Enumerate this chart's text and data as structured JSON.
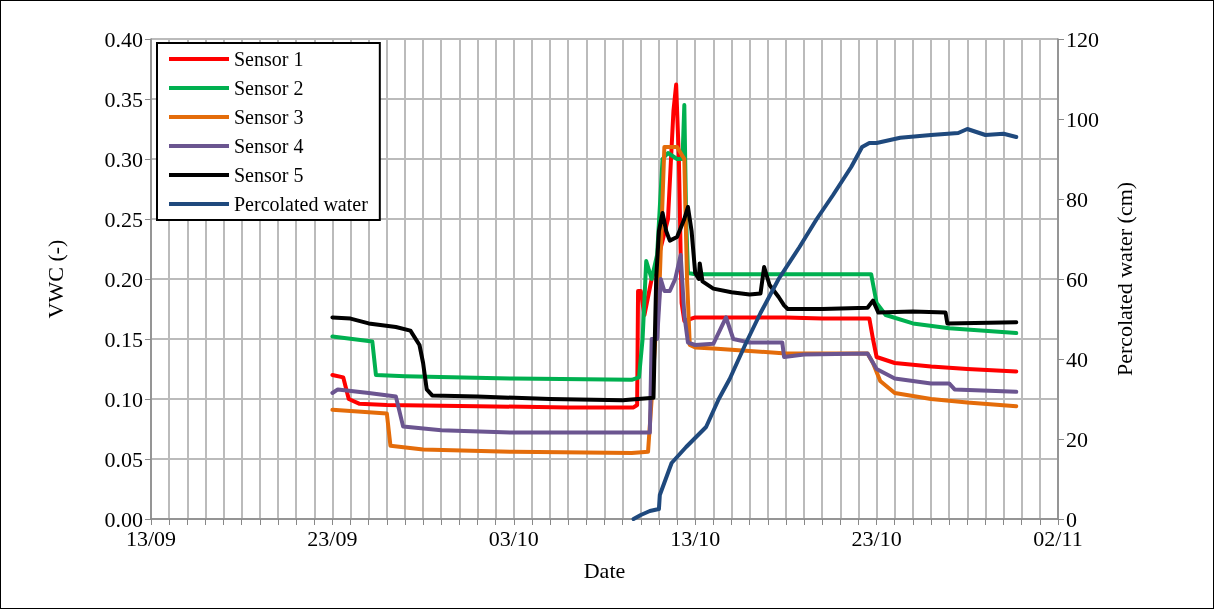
{
  "chart_data": {
    "type": "line",
    "xlabel": "Date",
    "ylabel": "VWC (-)",
    "y2label": "Percolated water (cm)",
    "xlim": [
      "--09-13",
      "--11-02"
    ],
    "xticks": [
      {
        "value": "--09-13",
        "label": "13/09"
      },
      {
        "value": "--09-14",
        "label": null
      },
      {
        "value": "--09-15",
        "label": null
      },
      {
        "value": "--09-16",
        "label": null
      },
      {
        "value": "--09-17",
        "label": null
      },
      {
        "value": "--09-18",
        "label": null
      },
      {
        "value": "--09-19",
        "label": null
      },
      {
        "value": "--09-20",
        "label": null
      },
      {
        "value": "--09-21",
        "label": null
      },
      {
        "value": "--09-22",
        "label": null
      },
      {
        "value": "--09-23",
        "label": "23/09"
      },
      {
        "value": "--09-24",
        "label": null
      },
      {
        "value": "--09-25",
        "label": null
      },
      {
        "value": "--09-26",
        "label": null
      },
      {
        "value": "--09-27",
        "label": null
      },
      {
        "value": "--09-28",
        "label": null
      },
      {
        "value": "--09-29",
        "label": null
      },
      {
        "value": "--09-30",
        "label": null
      },
      {
        "value": "--10-01",
        "label": null
      },
      {
        "value": "--10-02",
        "label": null
      },
      {
        "value": "--10-03",
        "label": "03/10"
      },
      {
        "value": "--10-04",
        "label": null
      },
      {
        "value": "--10-05",
        "label": null
      },
      {
        "value": "--10-06",
        "label": null
      },
      {
        "value": "--10-07",
        "label": null
      },
      {
        "value": "--10-08",
        "label": null
      },
      {
        "value": "--10-09",
        "label": null
      },
      {
        "value": "--10-10",
        "label": null
      },
      {
        "value": "--10-11",
        "label": null
      },
      {
        "value": "--10-12",
        "label": null
      },
      {
        "value": "--10-13",
        "label": "13/10"
      },
      {
        "value": "--10-14",
        "label": null
      },
      {
        "value": "--10-15",
        "label": null
      },
      {
        "value": "--10-16",
        "label": null
      },
      {
        "value": "--10-17",
        "label": null
      },
      {
        "value": "--10-18",
        "label": null
      },
      {
        "value": "--10-19",
        "label": null
      },
      {
        "value": "--10-20",
        "label": null
      },
      {
        "value": "--10-21",
        "label": null
      },
      {
        "value": "--10-22",
        "label": null
      },
      {
        "value": "--10-23",
        "label": "23/10"
      },
      {
        "value": "--10-24",
        "label": null
      },
      {
        "value": "--10-25",
        "label": null
      },
      {
        "value": "--10-26",
        "label": null
      },
      {
        "value": "--10-27",
        "label": null
      },
      {
        "value": "--10-28",
        "label": null
      },
      {
        "value": "--10-29",
        "label": null
      },
      {
        "value": "--10-30",
        "label": null
      },
      {
        "value": "--10-31",
        "label": null
      },
      {
        "value": "--11-01",
        "label": null
      },
      {
        "value": "--11-02",
        "label": "02/11"
      }
    ],
    "ylim": [
      0,
      0.4
    ],
    "yticks": [
      {
        "value": 0,
        "label": "0.00"
      },
      {
        "value": 0.05,
        "label": "0.05"
      },
      {
        "value": 0.1,
        "label": "0.10"
      },
      {
        "value": 0.15,
        "label": "0.15"
      },
      {
        "value": 0.2,
        "label": "0.20"
      },
      {
        "value": 0.25,
        "label": "0.25"
      },
      {
        "value": 0.3,
        "label": "0.30"
      },
      {
        "value": 0.35,
        "label": "0.35"
      },
      {
        "value": 0.4,
        "label": "0.40"
      }
    ],
    "y2lim": [
      0,
      120
    ],
    "y2ticks": [
      0,
      20,
      40,
      60,
      80,
      100,
      120
    ],
    "grid": true,
    "legend": "top left",
    "marker": "none",
    "line_style": "solid",
    "series": [
      {
        "name": "Sensor 1",
        "color": "#ff0000",
        "x": [
          "--09-23T00:00",
          "--09-23T14:24",
          "--09-23T21:36",
          "--09-24T12:00",
          "--09-26T00:00",
          "--10-01T00:00",
          "--10-06T00:00",
          "--10-09T14:24",
          "--10-09T19:12",
          "--10-09T20:24",
          "--10-10T00:00",
          "--10-10T04:48",
          "--10-10T14:24",
          "--10-11T00:00",
          "--10-11T12:00",
          "--10-11T19:12",
          "--10-11T22:48",
          "--10-12T02:24",
          "--10-12T06:00",
          "--10-12T09:36",
          "--10-13T00:00",
          "--10-15T00:00",
          "--10-18T00:00",
          "--10-20T00:00",
          "--10-22T14:24",
          "--10-22T19:12",
          "--10-23T00:00",
          "--10-24T00:00",
          "--10-26T00:00",
          "--10-28T00:00",
          "--10-30T16:48"
        ],
        "values": [
          0.12,
          0.118,
          0.1,
          0.096,
          0.095,
          0.094,
          0.093,
          0.093,
          0.095,
          0.19,
          0.19,
          0.17,
          0.2,
          0.22,
          0.25,
          0.34,
          0.362,
          0.3,
          0.18,
          0.165,
          0.168,
          0.168,
          0.168,
          0.167,
          0.167,
          0.15,
          0.135,
          0.13,
          0.127,
          0.125,
          0.123
        ]
      },
      {
        "name": "Sensor 2",
        "color": "#00b050",
        "x": [
          "--09-23T00:00",
          "--09-25T04:48",
          "--09-25T09:36",
          "--09-27T00:00",
          "--10-03T00:00",
          "--10-09T12:00",
          "--10-09T21:36",
          "--10-10T02:24",
          "--10-10T07:12",
          "--10-10T14:24",
          "--10-10T21:36",
          "--10-11T04:48",
          "--10-11T12:00",
          "--10-12T00:00",
          "--10-12T07:12",
          "--10-12T09:36",
          "--10-12T12:00",
          "--10-12T14:24",
          "--10-13T00:00",
          "--10-18T00:00",
          "--10-22T16:48",
          "--10-23T00:00",
          "--10-23T12:00",
          "--10-25T00:00",
          "--10-27T00:00",
          "--10-30T16:48"
        ],
        "values": [
          0.152,
          0.148,
          0.12,
          0.119,
          0.117,
          0.116,
          0.118,
          0.15,
          0.215,
          0.2,
          0.22,
          0.3,
          0.305,
          0.3,
          0.3,
          0.345,
          0.25,
          0.205,
          0.204,
          0.204,
          0.204,
          0.18,
          0.17,
          0.163,
          0.159,
          0.155
        ]
      },
      {
        "name": "Sensor 3",
        "color": "#e46c0a",
        "x": [
          "--09-23T00:00",
          "--09-26T00:00",
          "--09-26T04:48",
          "--09-28T00:00",
          "--10-03T00:00",
          "--10-09T12:00",
          "--10-10T09:36",
          "--10-10T14:24",
          "--10-10T19:12",
          "--10-11T00:00",
          "--10-11T07:12",
          "--10-11T14:24",
          "--10-12T00:00",
          "--10-12T09:36",
          "--10-12T13:12",
          "--10-12T16:48",
          "--10-13T00:00",
          "--10-14T00:00",
          "--10-16T00:00",
          "--10-18T00:00",
          "--10-20T00:00",
          "--10-22T12:00",
          "--10-22T19:12",
          "--10-23T04:48",
          "--10-24T00:00",
          "--10-26T00:00",
          "--10-28T00:00",
          "--10-30T16:48"
        ],
        "values": [
          0.091,
          0.088,
          0.061,
          0.058,
          0.056,
          0.055,
          0.056,
          0.1,
          0.15,
          0.18,
          0.31,
          0.31,
          0.31,
          0.3,
          0.2,
          0.145,
          0.143,
          0.142,
          0.14,
          0.138,
          0.138,
          0.138,
          0.13,
          0.115,
          0.105,
          0.1,
          0.097,
          0.094
        ]
      },
      {
        "name": "Sensor 4",
        "color": "#6b5590",
        "x": [
          "--09-23T00:00",
          "--09-23T07:12",
          "--09-25T00:00",
          "--09-26T12:00",
          "--09-26T21:36",
          "--09-29T00:00",
          "--10-03T00:00",
          "--10-10T12:00",
          "--10-10T14:24",
          "--10-10T21:36",
          "--10-11T02:24",
          "--10-11T07:12",
          "--10-11T14:24",
          "--10-11T21:36",
          "--10-12T04:48",
          "--10-12T09:36",
          "--10-12T14:24",
          "--10-13T00:00",
          "--10-14T00:00",
          "--10-14T16:48",
          "--10-15T02:24",
          "--10-16T00:00",
          "--10-17T19:12",
          "--10-17T21:36",
          "--10-19T00:00",
          "--10-22T12:00",
          "--10-23T00:00",
          "--10-24T00:00",
          "--10-26T00:00",
          "--10-27T00:00",
          "--10-27T07:12",
          "--10-30T16:48"
        ],
        "values": [
          0.105,
          0.108,
          0.105,
          0.102,
          0.077,
          0.074,
          0.072,
          0.072,
          0.15,
          0.15,
          0.2,
          0.19,
          0.19,
          0.2,
          0.22,
          0.17,
          0.147,
          0.145,
          0.146,
          0.168,
          0.15,
          0.147,
          0.147,
          0.135,
          0.137,
          0.138,
          0.125,
          0.117,
          0.113,
          0.113,
          0.108,
          0.106
        ]
      },
      {
        "name": "Sensor 5",
        "color": "#000000",
        "x": [
          "--09-23T00:00",
          "--09-24T00:00",
          "--09-25T00:00",
          "--09-26T12:00",
          "--09-27T07:12",
          "--09-27T19:12",
          "--09-28T00:00",
          "--09-28T04:48",
          "--09-28T12:00",
          "--10-01T00:00",
          "--10-05T00:00",
          "--10-09T00:00",
          "--10-10T16:48",
          "--10-10T20:24",
          "--10-11T00:00",
          "--10-11T04:48",
          "--10-11T09:36",
          "--10-11T14:24",
          "--10-12T00:00",
          "--10-12T09:36",
          "--10-12T14:24",
          "--10-12T19:12",
          "--10-13T00:00",
          "--10-13T04:48",
          "--10-13T06:00",
          "--10-13T09:36",
          "--10-14T00:00",
          "--10-15T00:00",
          "--10-16T00:00",
          "--10-16T14:24",
          "--10-16T19:12",
          "--10-17T02:24",
          "--10-17T14:24",
          "--10-17T21:36",
          "--10-18T02:24",
          "--10-20T00:00",
          "--10-22T12:00",
          "--10-22T19:12",
          "--10-23T02:24",
          "--10-25T00:00",
          "--10-26T19:12",
          "--10-26T21:36",
          "--10-30T16:48"
        ],
        "values": [
          0.168,
          0.167,
          0.163,
          0.16,
          0.157,
          0.145,
          0.13,
          0.108,
          0.103,
          0.102,
          0.1,
          0.099,
          0.101,
          0.2,
          0.24,
          0.255,
          0.24,
          0.232,
          0.235,
          0.25,
          0.26,
          0.24,
          0.205,
          0.2,
          0.213,
          0.198,
          0.192,
          0.189,
          0.187,
          0.188,
          0.21,
          0.195,
          0.185,
          0.178,
          0.175,
          0.175,
          0.176,
          0.182,
          0.172,
          0.173,
          0.172,
          0.163,
          0.164
        ]
      },
      {
        "name": "Percolated water",
        "color": "#1f497d",
        "axis": "y2",
        "x": [
          "--10-09T14:24",
          "--10-10T00:00",
          "--10-10T12:00",
          "--10-11T00:00",
          "--10-11T01:12",
          "--10-11T16:48",
          "--10-12T12:00",
          "--10-13T14:24",
          "--10-14T07:12",
          "--10-14T21:36",
          "--10-15T19:12",
          "--10-16T14:24",
          "--10-17T14:24",
          "--10-18T18:00",
          "--10-19T16:48",
          "--10-20T14:24",
          "--10-21T14:24",
          "--10-22T04:48",
          "--10-22T14:24",
          "--10-23T00:00",
          "--10-24T07:12",
          "--10-26T00:00",
          "--10-27T12:00",
          "--10-28T00:00",
          "--10-29T00:00",
          "--10-30T00:00",
          "--10-30T16:48"
        ],
        "values": [
          0,
          1,
          2,
          2.5,
          6,
          14,
          18,
          23,
          30,
          35,
          44,
          51.5,
          60,
          68,
          75,
          81,
          88,
          93,
          94,
          94,
          95.3,
          96,
          96.5,
          97.5,
          96,
          96.3,
          95.5
        ]
      }
    ]
  }
}
